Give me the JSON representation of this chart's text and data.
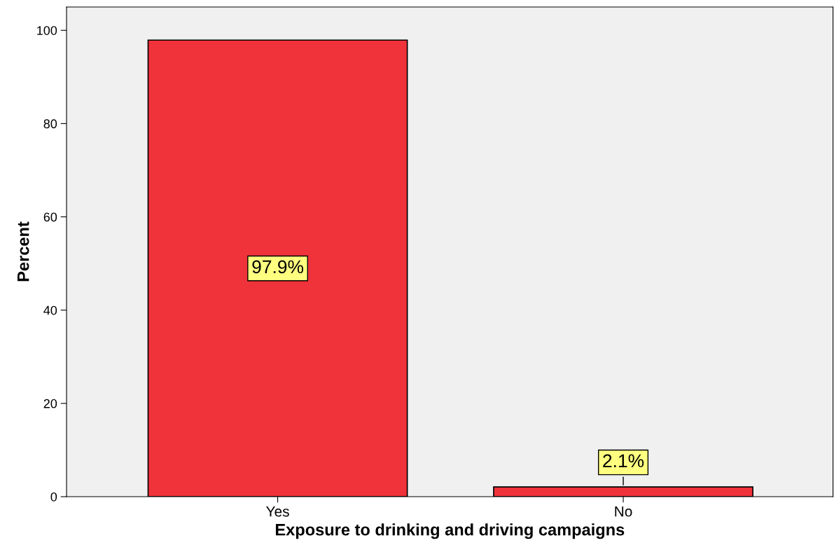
{
  "chart_data": {
    "type": "bar",
    "xlabel": "Exposure to drinking and driving campaigns",
    "ylabel": "Percent",
    "categories": [
      "Yes",
      "No"
    ],
    "values": [
      97.9,
      2.1
    ],
    "value_labels": [
      "97.9%",
      "2.1%"
    ],
    "color": "#f0333a",
    "ylim": [
      0,
      105
    ],
    "yticks": [
      0,
      20,
      40,
      60,
      80,
      100
    ],
    "grid": false,
    "legend": false
  }
}
